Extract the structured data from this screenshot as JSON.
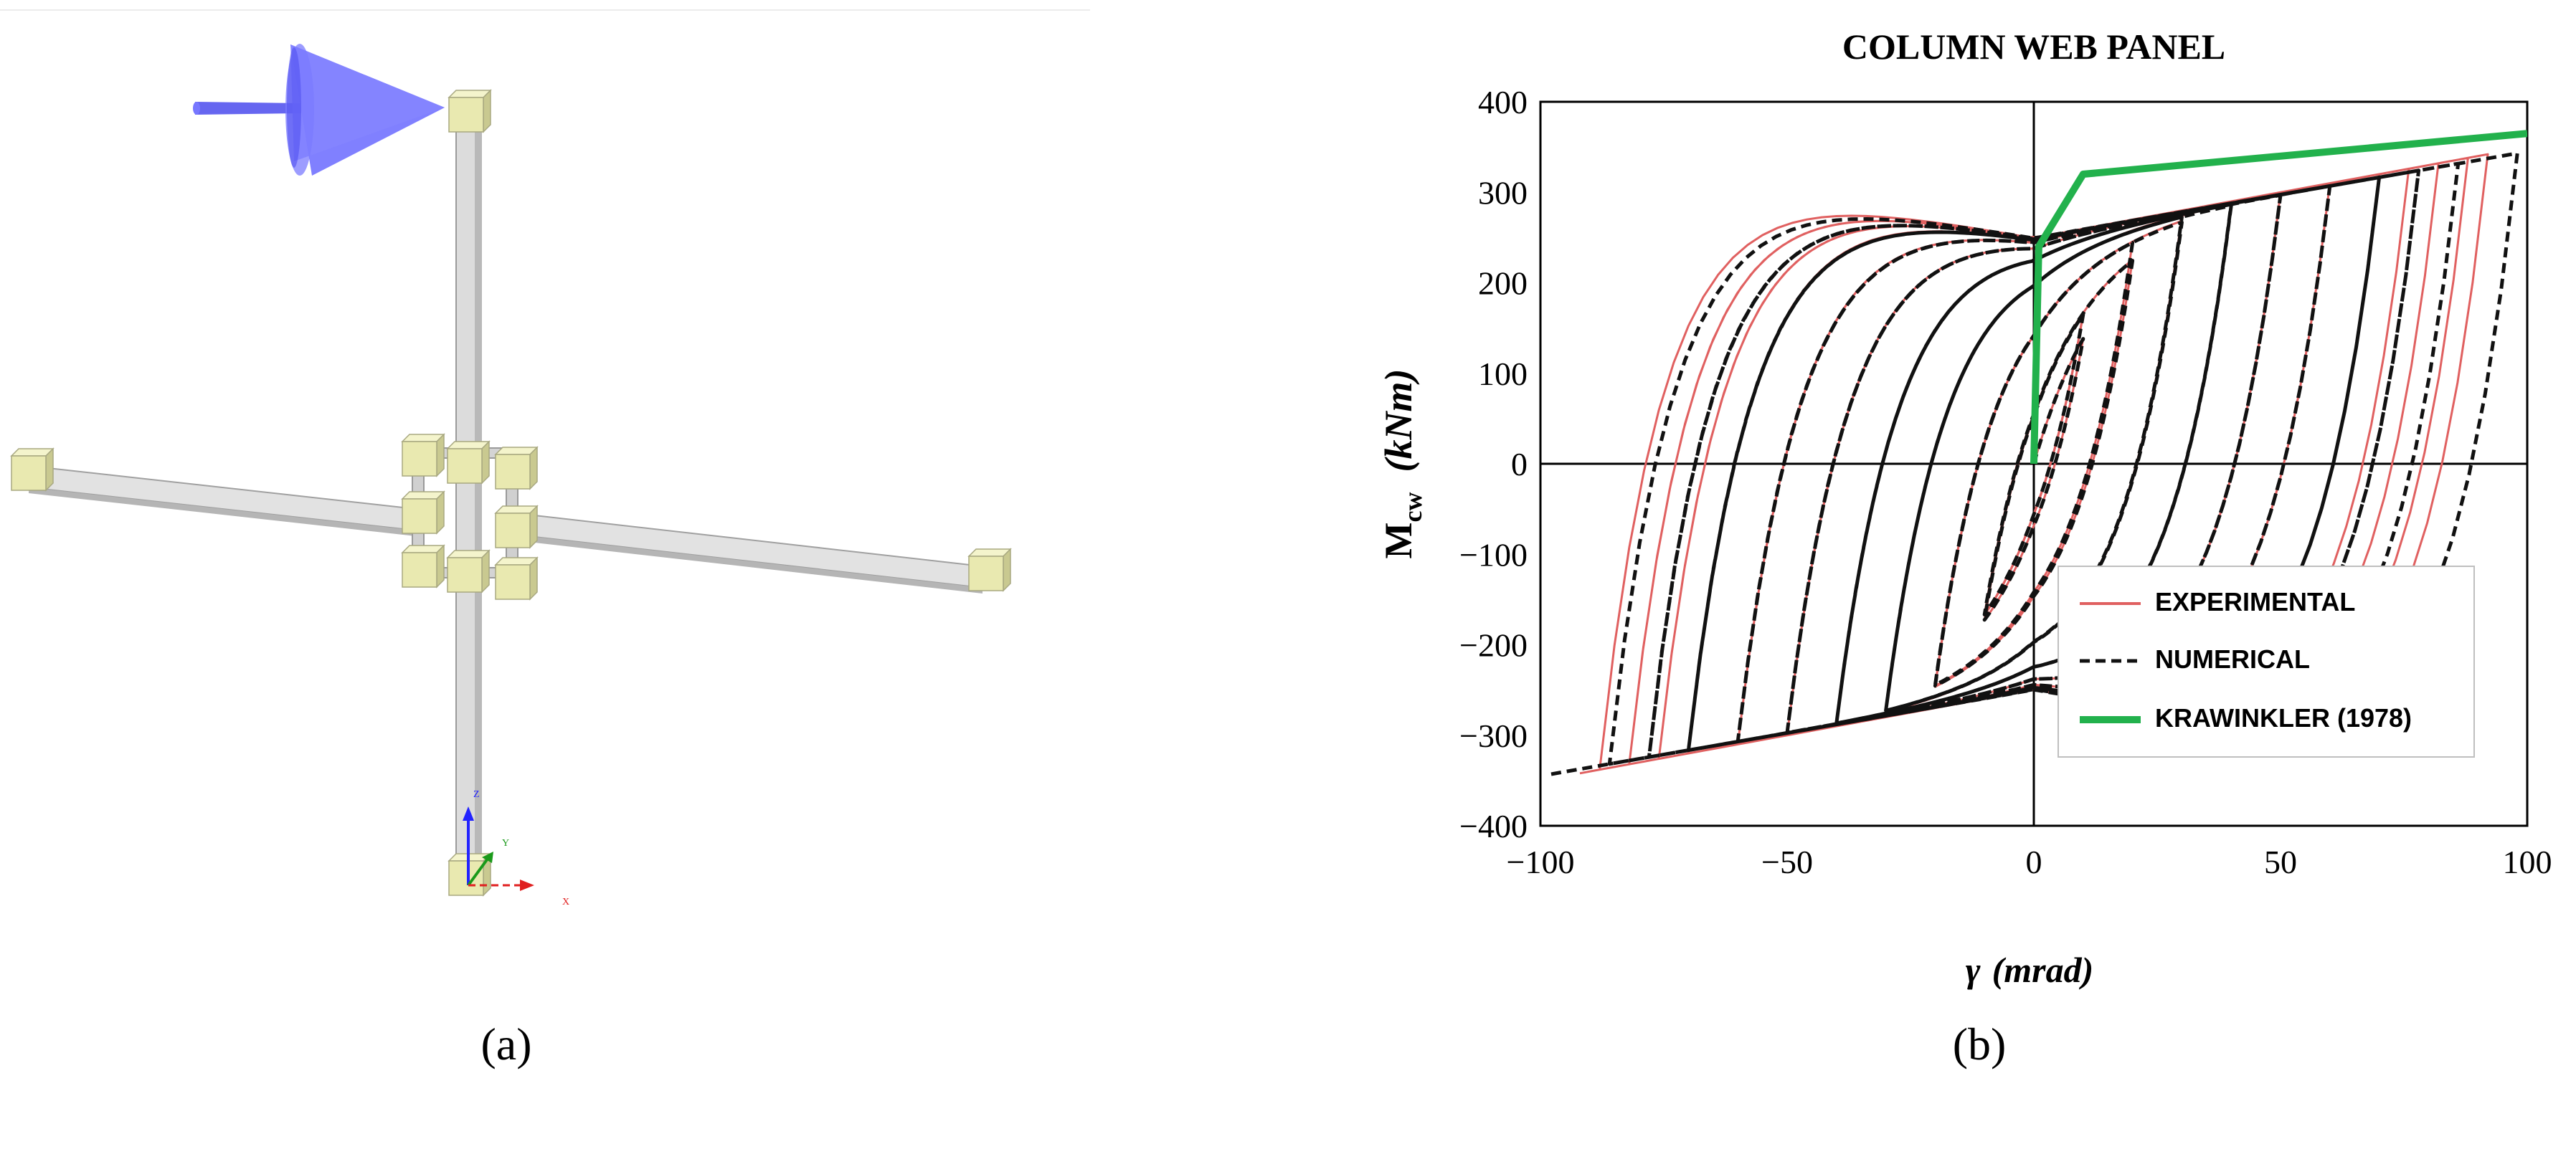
{
  "panels": {
    "a": {
      "caption": "(a)",
      "axis_triad": {
        "z": "Z",
        "y": "Y",
        "x": "X"
      },
      "colors": {
        "node": "#e9e9b0",
        "member": "#d8d8d8",
        "load_arrow": "#6666ff"
      }
    },
    "b": {
      "caption": "(b)"
    }
  },
  "chart_data": {
    "type": "line",
    "title": "COLUMN WEB PANEL",
    "ylabel_main": "M",
    "ylabel_sub": "cw",
    "ylabel_units": "(kNm)",
    "xlabel_symbol": "γ",
    "xlabel_units": "(mrad)",
    "xlim": [
      -100,
      100
    ],
    "ylim": [
      -400,
      400
    ],
    "xticks": [
      "−100",
      "−50",
      "0",
      "50",
      "100"
    ],
    "xtick_values": [
      -100,
      -50,
      0,
      50,
      100
    ],
    "yticks": [
      "400",
      "300",
      "200",
      "100",
      "0",
      "−100",
      "−200",
      "−300",
      "−400"
    ],
    "ytick_values": [
      400,
      300,
      200,
      100,
      0,
      -100,
      -200,
      -300,
      -400
    ],
    "legend_position": "bottom-right",
    "grid": false,
    "series": [
      {
        "name": "EXPERIMENTAL",
        "color": "#e06060",
        "style": "solid",
        "cycles": [
          {
            "amp": 10,
            "n": 3
          },
          {
            "amp": 20,
            "n": 2
          },
          {
            "amp": 30,
            "n": 2
          },
          {
            "amp": 40,
            "n": 2
          },
          {
            "amp": 50,
            "n": 2
          },
          {
            "amp": 60,
            "n": 2
          },
          {
            "amp": 70,
            "n": 2
          },
          {
            "amp": 76,
            "n": 2
          },
          {
            "amp": 82,
            "n": 2
          },
          {
            "amp": 88,
            "n": 1
          },
          {
            "amp": 92,
            "n": 1
          }
        ],
        "yield_moment": 250,
        "peak_moment": 350
      },
      {
        "name": "NUMERICAL",
        "color": "#111111",
        "style": "dashed",
        "cycles": [
          {
            "amp": 10,
            "n": 2
          },
          {
            "amp": 20,
            "n": 2
          },
          {
            "amp": 30,
            "n": 2
          },
          {
            "amp": 40,
            "n": 2
          },
          {
            "amp": 50,
            "n": 2
          },
          {
            "amp": 60,
            "n": 2
          },
          {
            "amp": 70,
            "n": 2
          },
          {
            "amp": 78,
            "n": 2
          },
          {
            "amp": 86,
            "n": 1
          },
          {
            "amp": 98,
            "n": 1
          }
        ],
        "yield_moment": 250,
        "peak_moment": 345
      },
      {
        "name": "KRAWINKLER (1978)",
        "color": "#22b14c",
        "style": "solid",
        "x": [
          0,
          1,
          10,
          100
        ],
        "y": [
          0,
          240,
          320,
          365
        ]
      }
    ]
  }
}
